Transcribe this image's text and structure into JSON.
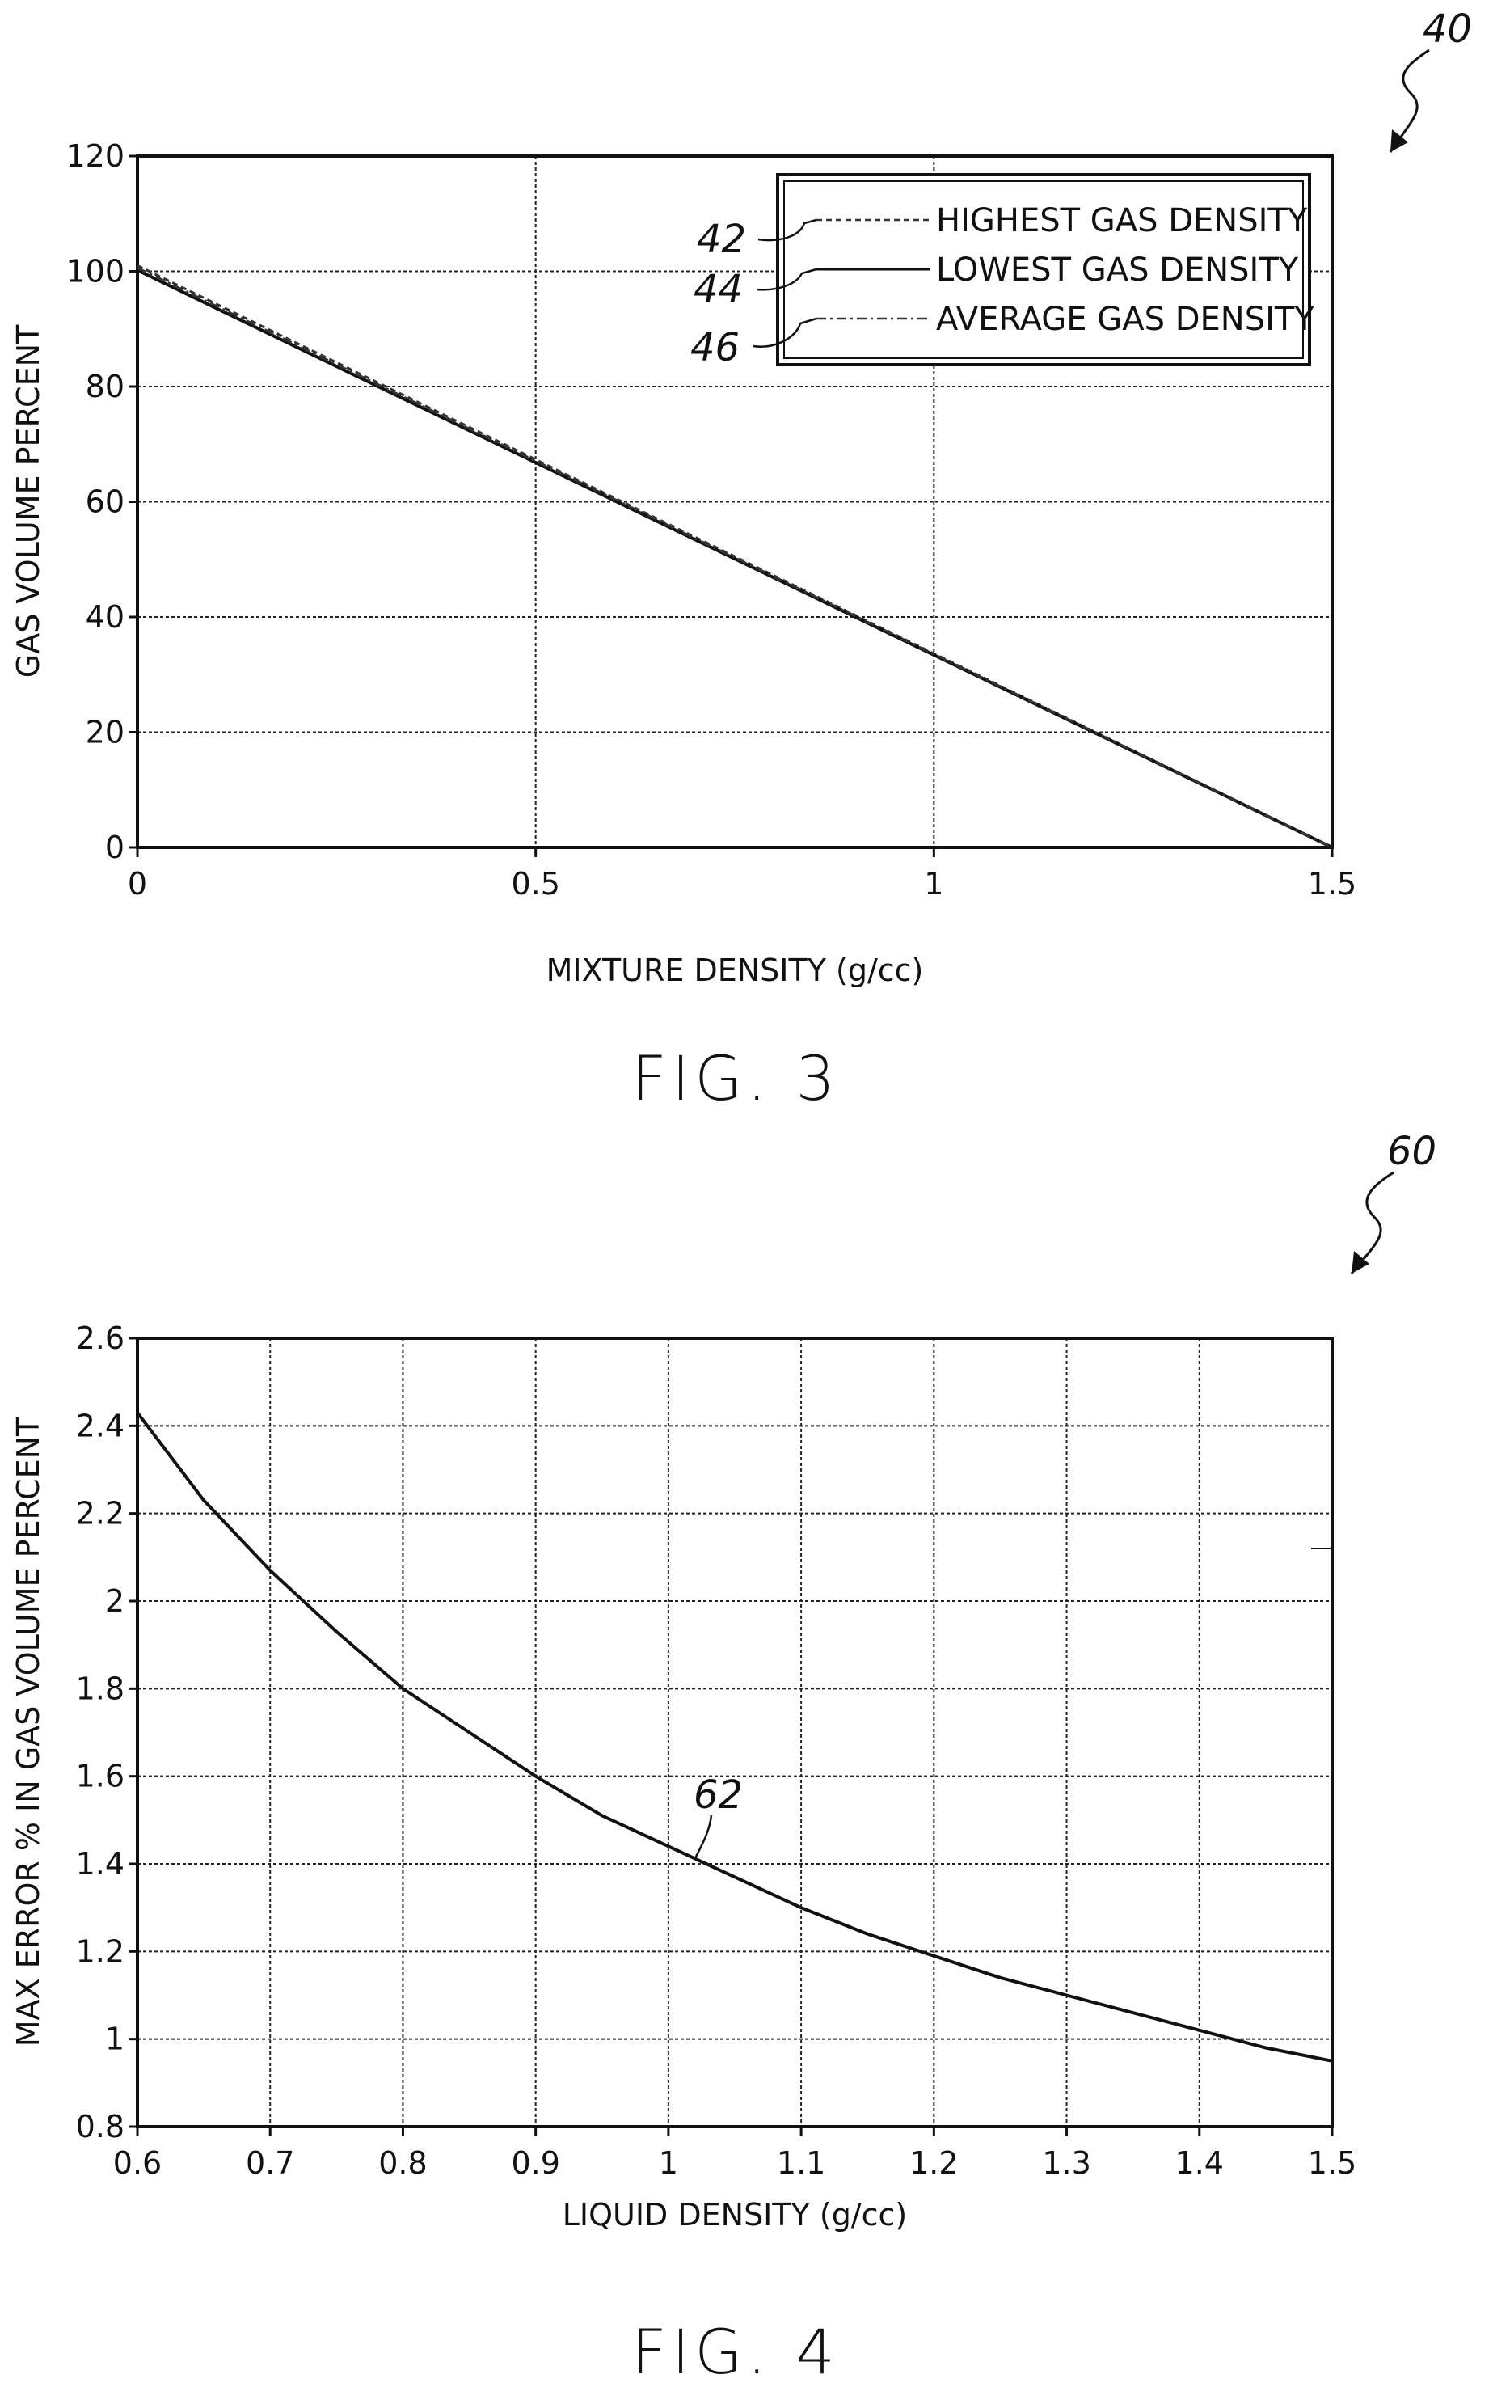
{
  "figures": [
    {
      "ref_number": "40",
      "fig_label": "FIG. 3",
      "legend_refs": [
        "42",
        "44",
        "46"
      ]
    },
    {
      "ref_number": "60",
      "fig_label": "FIG. 4",
      "curve_ref": "62"
    }
  ],
  "chart_data": [
    {
      "type": "line",
      "title": "",
      "xlabel": "MIXTURE DENSITY (g/cc)",
      "ylabel": "GAS VOLUME PERCENT",
      "xlim": [
        0,
        1.5
      ],
      "ylim": [
        0,
        120
      ],
      "xticks": [
        "0",
        "0.5",
        "1",
        "1.5"
      ],
      "yticks": [
        "0",
        "20",
        "40",
        "60",
        "80",
        "100",
        "120"
      ],
      "grid": true,
      "legend_position": "top-right",
      "series": [
        {
          "name": "HIGHEST GAS DENSITY",
          "style": "dashed",
          "color": "#333333",
          "x": [
            0,
            1.5
          ],
          "y": [
            101,
            0
          ]
        },
        {
          "name": "LOWEST GAS DENSITY",
          "style": "solid",
          "color": "#111111",
          "x": [
            0,
            1.5
          ],
          "y": [
            100.2,
            0
          ]
        },
        {
          "name": "AVERAGE GAS DENSITY",
          "style": "dashdot",
          "color": "#333333",
          "x": [
            0,
            1.5
          ],
          "y": [
            100.6,
            0
          ]
        }
      ]
    },
    {
      "type": "line",
      "title": "",
      "xlabel": "LIQUID DENSITY (g/cc)",
      "ylabel": "MAX ERROR % IN GAS VOLUME PERCENT",
      "xlim": [
        0.6,
        1.5
      ],
      "ylim": [
        0.8,
        2.6
      ],
      "xticks": [
        "0.6",
        "0.7",
        "0.8",
        "0.9",
        "1",
        "1.1",
        "1.2",
        "1.3",
        "1.4",
        "1.5"
      ],
      "yticks": [
        "0.8",
        "1",
        "1.2",
        "1.4",
        "1.6",
        "1.8",
        "2",
        "2.2",
        "2.4",
        "2.6"
      ],
      "grid": true,
      "series": [
        {
          "style": "solid",
          "color": "#111111",
          "x": [
            0.6,
            0.65,
            0.7,
            0.75,
            0.8,
            0.85,
            0.9,
            0.95,
            1.0,
            1.05,
            1.1,
            1.15,
            1.2,
            1.25,
            1.3,
            1.35,
            1.4,
            1.45,
            1.5
          ],
          "y": [
            2.43,
            2.23,
            2.07,
            1.93,
            1.8,
            1.7,
            1.6,
            1.51,
            1.44,
            1.37,
            1.3,
            1.24,
            1.19,
            1.14,
            1.1,
            1.06,
            1.02,
            0.98,
            0.95
          ]
        }
      ]
    }
  ]
}
